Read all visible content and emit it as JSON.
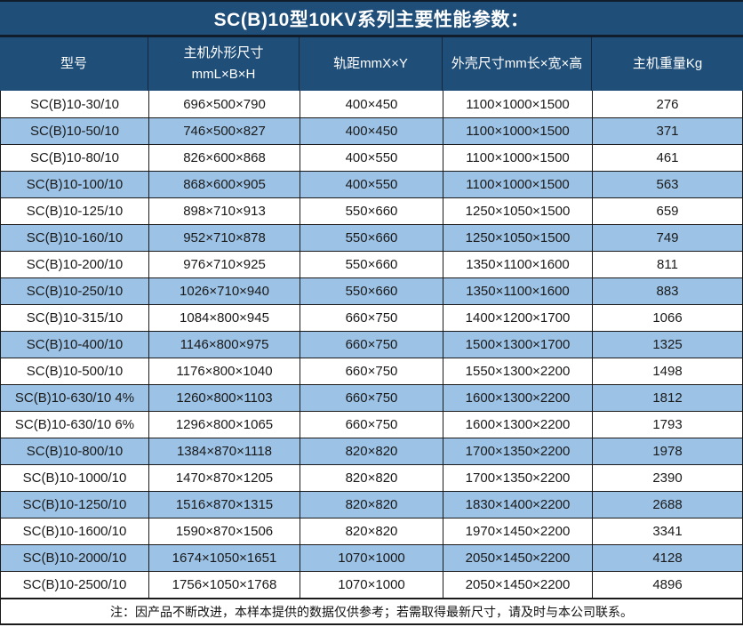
{
  "colors": {
    "header_bg": "#1f4e79",
    "stripe_bg": "#9cc2e5",
    "row_bg": "#ffffff",
    "border": "#1a1a1a",
    "header_text": "#ffffff",
    "body_text": "#1a1a1a"
  },
  "table": {
    "title": "SC(B)10型10KV系列主要性能参数：",
    "columns": [
      "型号",
      "主机外形尺寸\nmmL×B×H",
      "轨距mmX×Y",
      "外壳尺寸mm长×宽×高",
      "主机重量Kg"
    ],
    "rows": [
      [
        "SC(B)10-30/10",
        "696×500×790",
        "400×450",
        "1100×1000×1500",
        "276"
      ],
      [
        "SC(B)10-50/10",
        "746×500×827",
        "400×450",
        "1100×1000×1500",
        "371"
      ],
      [
        "SC(B)10-80/10",
        "826×600×868",
        "400×550",
        "1100×1000×1500",
        "461"
      ],
      [
        "SC(B)10-100/10",
        "868×600×905",
        "400×550",
        "1100×1000×1500",
        "563"
      ],
      [
        "SC(B)10-125/10",
        "898×710×913",
        "550×660",
        "1250×1050×1500",
        "659"
      ],
      [
        "SC(B)10-160/10",
        "952×710×878",
        "550×660",
        "1250×1050×1500",
        "749"
      ],
      [
        "SC(B)10-200/10",
        "976×710×925",
        "550×660",
        "1350×1100×1600",
        "811"
      ],
      [
        "SC(B)10-250/10",
        "1026×710×940",
        "550×660",
        "1350×1100×1600",
        "883"
      ],
      [
        "SC(B)10-315/10",
        "1084×800×945",
        "660×750",
        "1400×1200×1700",
        "1066"
      ],
      [
        "SC(B)10-400/10",
        "1146×800×975",
        "660×750",
        "1500×1300×1700",
        "1325"
      ],
      [
        "SC(B)10-500/10",
        "1176×800×1040",
        "660×750",
        "1550×1300×2200",
        "1498"
      ],
      [
        "SC(B)10-630/10 4%",
        "1260×800×1103",
        "660×750",
        "1600×1300×2200",
        "1812"
      ],
      [
        "SC(B)10-630/10 6%",
        "1296×800×1065",
        "660×750",
        "1600×1300×2200",
        "1793"
      ],
      [
        "SC(B)10-800/10",
        "1384×870×1118",
        "820×820",
        "1700×1350×2200",
        "1978"
      ],
      [
        "SC(B)10-1000/10",
        "1470×870×1205",
        "820×820",
        "1700×1350×2200",
        "2390"
      ],
      [
        "SC(B)10-1250/10",
        "1516×870×1315",
        "820×820",
        "1830×1400×2200",
        "2688"
      ],
      [
        "SC(B)10-1600/10",
        "1590×870×1506",
        "820×820",
        "1970×1450×2200",
        "3341"
      ],
      [
        "SC(B)10-2000/10",
        "1674×1050×1651",
        "1070×1000",
        "2050×1450×2200",
        "4128"
      ],
      [
        "SC(B)10-2500/10",
        "1756×1050×1768",
        "1070×1000",
        "2050×1450×2200",
        "4896"
      ]
    ],
    "note": "注：因产品不断改进，本样本提供的数据仅供参考；若需取得最新尺寸，请及时与本公司联系。"
  }
}
